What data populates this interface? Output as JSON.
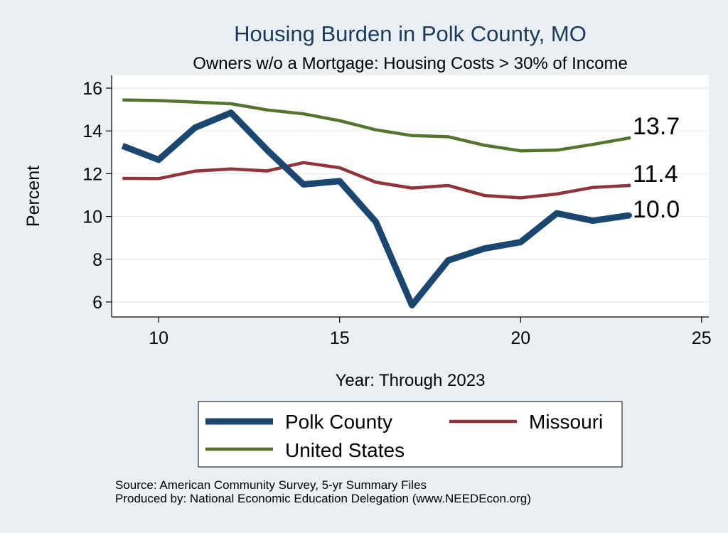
{
  "chart_data": {
    "type": "line",
    "title": "Housing Burden in Polk County, MO",
    "subtitle": "Owners w/o a Mortgage: Housing Costs > 30% of Income",
    "xlabel": "Year: Through 2023",
    "ylabel": "Percent",
    "xlim": [
      8.7,
      25.2
    ],
    "ylim": [
      5.3,
      16.6
    ],
    "x_ticks": [
      10,
      15,
      20,
      25
    ],
    "y_ticks": [
      6,
      8,
      10,
      12,
      14,
      16
    ],
    "grid": true,
    "legend_position": "bottom",
    "x": [
      9,
      10,
      11,
      12,
      13,
      14,
      15,
      16,
      17,
      18,
      19,
      20,
      21,
      22,
      23
    ],
    "series": [
      {
        "name": "Polk County",
        "color": "#1a476f",
        "line_weight": "thick",
        "values": [
          13.3,
          12.65,
          14.15,
          14.85,
          13.1,
          11.5,
          11.65,
          9.75,
          5.85,
          7.95,
          8.5,
          8.8,
          10.15,
          9.8,
          10.05
        ],
        "end_label": "10.0"
      },
      {
        "name": "Missouri",
        "color": "#90353b",
        "line_weight": "medium",
        "values": [
          11.78,
          11.77,
          12.12,
          12.22,
          12.13,
          12.52,
          12.28,
          11.6,
          11.33,
          11.45,
          10.98,
          10.87,
          11.05,
          11.36,
          11.45
        ],
        "end_label": "11.4"
      },
      {
        "name": "United States",
        "color": "#55752f",
        "line_weight": "medium",
        "values": [
          15.45,
          15.42,
          15.35,
          15.27,
          14.98,
          14.8,
          14.48,
          14.05,
          13.78,
          13.73,
          13.33,
          13.07,
          13.1,
          13.37,
          13.67
        ],
        "end_label": "13.7"
      }
    ],
    "legend": [
      "Polk County",
      "Missouri",
      "United States"
    ],
    "notes": [
      "Source: American Community Survey, 5-yr Summary Files",
      "Produced by: National Economic Education Delegation (www.NEEDEcon.org)"
    ]
  }
}
